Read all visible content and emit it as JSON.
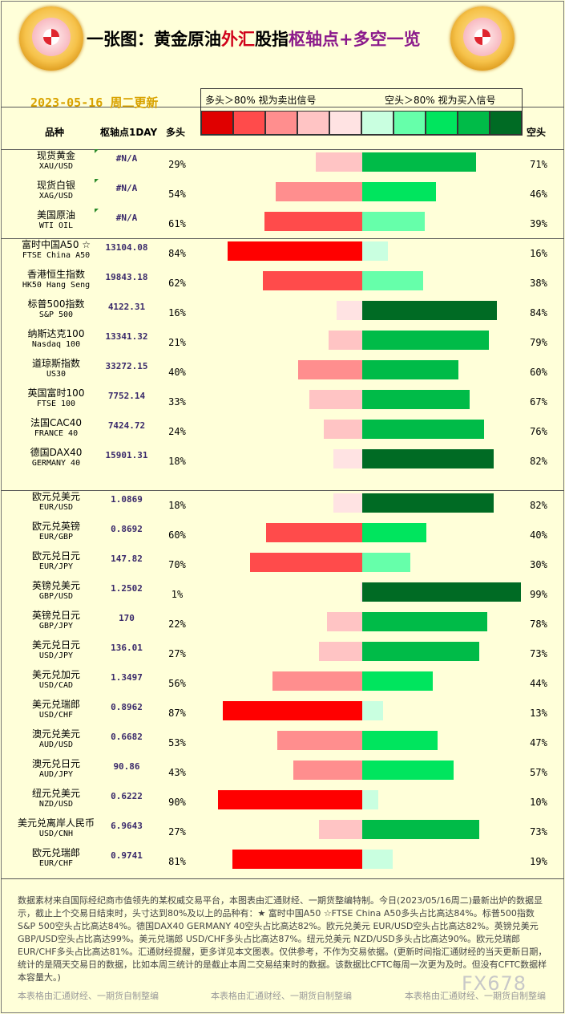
{
  "header": {
    "title_parts": [
      "一张图：黄金原油",
      "外汇",
      "股指",
      "枢轴点+多空一览"
    ],
    "date": "2023-05-16 周二更新",
    "legend_left": "多头＞80% 视为卖出信号",
    "legend_right": "空头＞80% 视为买入信号",
    "legend_colors": [
      "#e00000",
      "#ff4b4b",
      "#ff8e8e",
      "#ffc4c4",
      "#ffe3e3",
      "#c9ffe0",
      "#66ffaa",
      "#00e55e",
      "#00bb48",
      "#006b24"
    ],
    "col_name": "品种",
    "col_pivot": "枢轴点1DAY",
    "col_long": "多头",
    "col_short": "空头"
  },
  "chart_data": {
    "type": "bar",
    "groups": [
      {
        "rows": [
          {
            "zh": "现货黄金",
            "en": "XAU/USD",
            "pivot": "#N/A",
            "long": 29,
            "short": 71
          },
          {
            "zh": "现货白银",
            "en": "XAG/USD",
            "pivot": "#N/A",
            "long": 54,
            "short": 46
          },
          {
            "zh": "美国原油",
            "en": "WTI OIL",
            "pivot": "#N/A",
            "long": 61,
            "short": 39
          }
        ]
      },
      {
        "rows": [
          {
            "zh": "富时中国A50 ☆",
            "en": "FTSE China A50",
            "pivot": "13104.08",
            "long": 84,
            "short": 16
          },
          {
            "zh": "香港恒生指数",
            "en": "HK50 Hang Seng",
            "pivot": "19843.18",
            "long": 62,
            "short": 38
          },
          {
            "zh": "标普500指数",
            "en": "S&P 500",
            "pivot": "4122.31",
            "long": 16,
            "short": 84
          },
          {
            "zh": "纳斯达克100",
            "en": "Nasdaq 100",
            "pivot": "13341.32",
            "long": 21,
            "short": 79
          },
          {
            "zh": "道琼斯指数",
            "en": "US30",
            "pivot": "33272.15",
            "long": 40,
            "short": 60
          },
          {
            "zh": "英国富时100",
            "en": "FTSE 100",
            "pivot": "7752.14",
            "long": 33,
            "short": 67
          },
          {
            "zh": "法国CAC40",
            "en": "FRANCE 40",
            "pivot": "7424.72",
            "long": 24,
            "short": 76
          },
          {
            "zh": "德国DAX40",
            "en": "GERMANY 40",
            "pivot": "15901.31",
            "long": 18,
            "short": 82
          }
        ]
      },
      {
        "rows": [
          {
            "zh": "欧元兑美元",
            "en": "EUR/USD",
            "pivot": "1.0869",
            "long": 18,
            "short": 82
          },
          {
            "zh": "欧元兑英镑",
            "en": "EUR/GBP",
            "pivot": "0.8692",
            "long": 60,
            "short": 40
          },
          {
            "zh": "欧元兑日元",
            "en": "EUR/JPY",
            "pivot": "147.82",
            "long": 70,
            "short": 30
          },
          {
            "zh": "英镑兑美元",
            "en": "GBP/USD",
            "pivot": "1.2502",
            "long": 1,
            "short": 99
          },
          {
            "zh": "英镑兑日元",
            "en": "GBP/JPY",
            "pivot": "170",
            "long": 22,
            "short": 78
          },
          {
            "zh": "美元兑日元",
            "en": "USD/JPY",
            "pivot": "136.01",
            "long": 27,
            "short": 73
          },
          {
            "zh": "美元兑加元",
            "en": "USD/CAD",
            "pivot": "1.3497",
            "long": 56,
            "short": 44
          },
          {
            "zh": "美元兑瑞郎",
            "en": "USD/CHF",
            "pivot": "0.8962",
            "long": 87,
            "short": 13
          },
          {
            "zh": "澳元兑美元",
            "en": "AUD/USD",
            "pivot": "0.6682",
            "long": 53,
            "short": 47
          },
          {
            "zh": "澳元兑日元",
            "en": "AUD/JPY",
            "pivot": "90.86",
            "long": 43,
            "short": 57
          },
          {
            "zh": "纽元兑美元",
            "en": "NZD/USD",
            "pivot": "0.6222",
            "long": 90,
            "short": 10
          },
          {
            "zh": "美元兑离岸人民币",
            "en": "USD/CNH",
            "pivot": "6.9643",
            "long": 27,
            "short": 73
          },
          {
            "zh": "欧元兑瑞郎",
            "en": "EUR/CHF",
            "pivot": "0.9741",
            "long": 81,
            "short": 19
          }
        ]
      }
    ]
  },
  "footer": {
    "note": "数据素材来自国际经纪商市值领先的某权威交易平台，本图表由汇通财经、一期货整编特制。今日(2023/05/16周二)最新出炉的数据显示，截止上个交易日结束时，头寸达到80%及以上的品种有：★ 富时中国A50 ☆FTSE China A50多头占比高达84%。标普500指数 S&P 500空头占比高达84%。德国DAX40 GERMANY 40空头占比高达82%。欧元兑美元 EUR/USD空头占比高达82%。英镑兑美元 GBP/USD空头占比高达99%。美元兑瑞郎 USD/CHF多头占比高达87%。纽元兑美元 NZD/USD多头占比高达90%。欧元兑瑞郎 EUR/CHF多头占比高达81%。汇通财经提醒，更多详见本文图表。仅供参考，不作为交易依据。(更新时间指汇通财经的当天更新日期，统计的是隔天交易日的数据，比如本周三统计的是截止本周二交易结束时的数据。该数据比CFTC每周一次更为及时。但没有CFTC数据样本容量大。)",
    "credit": "本表格由汇通财经、一期货自制整编",
    "watermark": "FX678"
  }
}
